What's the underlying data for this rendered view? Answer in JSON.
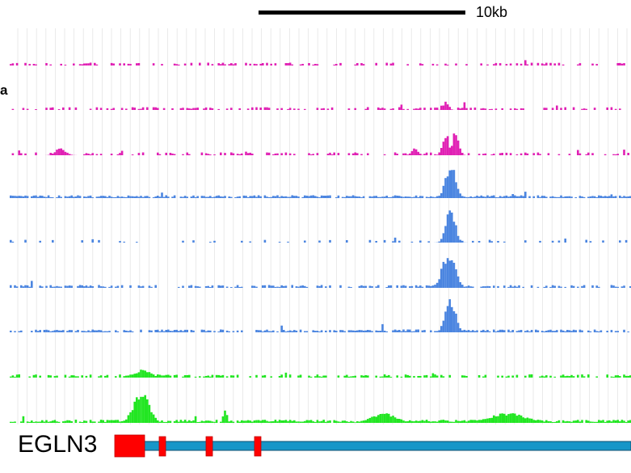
{
  "scale_bar": {
    "label": "10kb"
  },
  "track_letter": "a",
  "gene": {
    "name": "EGLN3"
  },
  "colors": {
    "background": "#ffffff",
    "grid": "#e4e4e4",
    "magenta": "#e020b4",
    "blue": "#4b85e0",
    "green": "#22e622",
    "gene_bar": "#1796c8",
    "gene_outline": "#0d4f70",
    "exon": "#ff0000"
  },
  "tracks": [
    {
      "id": "h3k4me3-1",
      "color": "magenta",
      "sparse": 0.62,
      "peaks": []
    },
    {
      "id": "h3k4me3-2",
      "color": "magenta",
      "sparse": 0.55,
      "peaks": [
        [
          0.701,
          0.28,
          0.004
        ]
      ]
    },
    {
      "id": "h3k4me3-3",
      "color": "magenta",
      "sparse": 0.6,
      "peaks": [
        [
          0.7,
          0.5,
          0.005
        ],
        [
          0.716,
          0.55,
          0.005
        ],
        [
          0.65,
          0.15,
          0.005
        ],
        [
          0.08,
          0.15,
          0.008
        ]
      ]
    },
    {
      "id": "pol2-1",
      "color": "blue",
      "sparse": 0.1,
      "peaks": [
        [
          0.708,
          1.0,
          0.008
        ]
      ]
    },
    {
      "id": "pol2-2",
      "color": "blue",
      "sparse": 0.85,
      "peaks": [
        [
          0.708,
          1.0,
          0.007
        ]
      ]
    },
    {
      "id": "pol2-3",
      "color": "blue",
      "sparse": 0.35,
      "peaks": [
        [
          0.705,
          1.0,
          0.01
        ]
      ]
    },
    {
      "id": "pol2-4",
      "color": "blue",
      "sparse": 0.25,
      "peaks": [
        [
          0.708,
          1.0,
          0.008
        ]
      ]
    },
    {
      "id": "rnaseq-1",
      "color": "green",
      "sparse": 0.45,
      "peaks": [
        [
          0.213,
          0.35,
          0.012
        ]
      ]
    },
    {
      "id": "rnaseq-2",
      "color": "green",
      "sparse": 0.1,
      "peaks": [
        [
          0.21,
          1.0,
          0.012
        ],
        [
          0.345,
          0.5,
          0.003
        ],
        [
          0.6,
          0.3,
          0.02
        ],
        [
          0.8,
          0.3,
          0.03
        ]
      ]
    }
  ],
  "gene_model": {
    "exons": [
      {
        "id": "exon-1"
      },
      {
        "id": "exon-2"
      },
      {
        "id": "exon-3"
      },
      {
        "id": "exon-4"
      }
    ]
  }
}
